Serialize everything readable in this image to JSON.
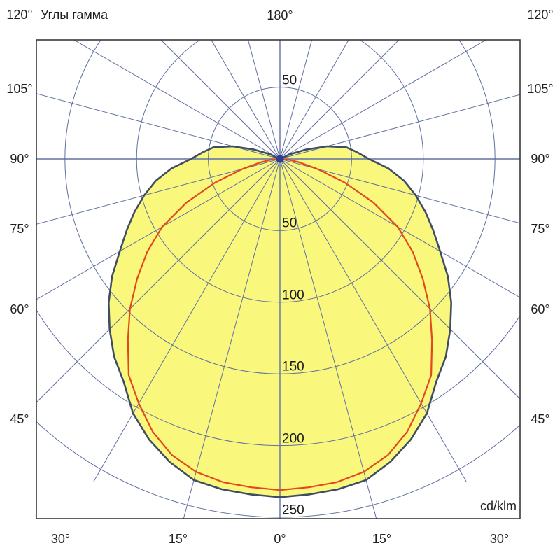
{
  "header": {
    "title": "Углы гамма"
  },
  "labels": {
    "top_angle": "180°",
    "units": "cd/klm"
  },
  "chart_data": {
    "type": "polar",
    "title": "Углы гамма",
    "units": "cd/klm",
    "description": "Luminous intensity distribution curves; gamma angle measured from nadir (0° at bottom, 180° at top), radial scale in cd/klm",
    "radial_ticks": [
      {
        "value": 50,
        "text": "50"
      },
      {
        "value": 100,
        "text": "100"
      },
      {
        "value": 150,
        "text": "150"
      },
      {
        "value": 200,
        "text": "200"
      },
      {
        "value": 250,
        "text": "250"
      }
    ],
    "radial_tick_also_above_pole": {
      "value": 50,
      "text": "50"
    },
    "radial_axis_max": 250,
    "gamma_grid_step_deg": 15,
    "grid_on": true,
    "angle_labels": {
      "top": "180°",
      "left": [
        {
          "deg": 120,
          "text": "120°"
        },
        {
          "deg": 105,
          "text": "105°"
        },
        {
          "deg": 90,
          "text": "90°"
        },
        {
          "deg": 75,
          "text": "75°"
        },
        {
          "deg": 60,
          "text": "60°"
        },
        {
          "deg": 45,
          "text": "45°"
        }
      ],
      "right": [
        {
          "deg": 120,
          "text": "120°"
        },
        {
          "deg": 105,
          "text": "105°"
        },
        {
          "deg": 90,
          "text": "90°"
        },
        {
          "deg": 75,
          "text": "75°"
        },
        {
          "deg": 60,
          "text": "60°"
        },
        {
          "deg": 45,
          "text": "45°"
        }
      ],
      "bottom": [
        {
          "deg": -30,
          "text": "30°"
        },
        {
          "deg": -15,
          "text": "15°"
        },
        {
          "deg": 0,
          "text": "0°"
        },
        {
          "deg": 15,
          "text": "15°"
        },
        {
          "deg": 30,
          "text": "30°"
        }
      ]
    },
    "colors": {
      "grid": "#6070A4",
      "frame": "#3A3A3A",
      "curve_filled_stroke": "#3E4D63",
      "curve_filled_fill": "#F9F87D",
      "curve_red": "#E2481C",
      "pole_dot": "#2E3E96",
      "text": "#1F1F1F"
    },
    "series": [
      {
        "id": "curve-yellow-filled",
        "style": "filled",
        "symmetric": true,
        "stroke": "#3E4D63",
        "fill": "#F9F87D",
        "gamma_deg": [
          0,
          5,
          10,
          15,
          20,
          25,
          30,
          35,
          40,
          45,
          50,
          55,
          60,
          65,
          70,
          75,
          80,
          85,
          90,
          95,
          100,
          105,
          110,
          115,
          120
        ],
        "values_cd_klm": [
          236,
          235,
          234,
          232,
          225,
          216,
          205,
          190,
          180,
          168,
          156,
          143,
          129,
          118,
          108,
          98,
          88,
          76,
          62,
          54,
          47,
          34,
          19,
          8,
          0
        ]
      },
      {
        "id": "curve-red",
        "style": "line",
        "symmetric": true,
        "stroke": "#E2481C",
        "gamma_deg": [
          0,
          5,
          10,
          15,
          20,
          25,
          30,
          35,
          40,
          45,
          50,
          55,
          60,
          65,
          70,
          75,
          80,
          85,
          90
        ],
        "values_cd_klm": [
          231,
          230,
          229,
          226,
          220,
          210,
          197,
          184,
          165,
          148,
          130,
          113,
          95,
          72,
          48,
          27,
          14,
          6,
          0
        ]
      }
    ]
  }
}
